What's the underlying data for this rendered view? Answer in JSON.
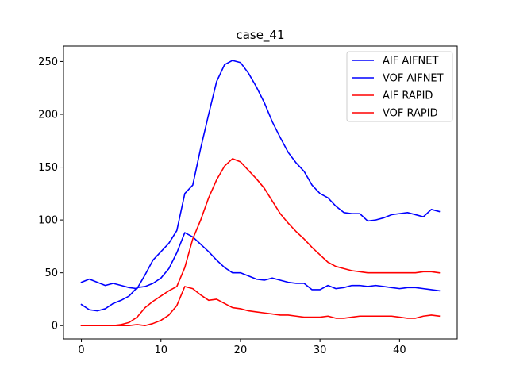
{
  "chart_data": {
    "type": "line",
    "title": "case_41",
    "xlabel": "",
    "ylabel": "",
    "xlim": [
      -2.25,
      47.25
    ],
    "ylim": [
      -12.6,
      264.6
    ],
    "xticks": [
      0,
      10,
      20,
      30,
      40
    ],
    "yticks": [
      0,
      50,
      100,
      150,
      200,
      250
    ],
    "grid": false,
    "legend_position": "top-right",
    "series": [
      {
        "name": "AIF AIFNET",
        "color": "#0000ff",
        "x": [
          0,
          1,
          2,
          3,
          4,
          5,
          6,
          7,
          8,
          9,
          10,
          11,
          12,
          13,
          14,
          15,
          16,
          17,
          18,
          19,
          20,
          21,
          22,
          23,
          24,
          25,
          26,
          27,
          28,
          29,
          30,
          31,
          32,
          33,
          34,
          35,
          36,
          37,
          38,
          39,
          40,
          41,
          42,
          43,
          44,
          45
        ],
        "y": [
          41,
          44,
          41,
          38,
          40,
          38,
          36,
          35,
          48,
          62,
          70,
          78,
          90,
          125,
          133,
          168,
          200,
          231,
          247,
          251,
          249,
          239,
          226,
          211,
          193,
          178,
          164,
          154,
          146,
          133,
          125,
          121,
          113,
          107,
          106,
          106,
          99,
          100,
          102,
          105,
          106,
          107,
          105,
          103,
          110,
          108
        ]
      },
      {
        "name": "VOF AIFNET",
        "color": "#0000ff",
        "x": [
          0,
          1,
          2,
          3,
          4,
          5,
          6,
          7,
          8,
          9,
          10,
          11,
          12,
          13,
          14,
          15,
          16,
          17,
          18,
          19,
          20,
          21,
          22,
          23,
          24,
          25,
          26,
          27,
          28,
          29,
          30,
          31,
          32,
          33,
          34,
          35,
          36,
          37,
          38,
          39,
          40,
          41,
          42,
          43,
          44,
          45
        ],
        "y": [
          20,
          15,
          14,
          16,
          21,
          24,
          28,
          36,
          37,
          40,
          45,
          54,
          69,
          88,
          84,
          77,
          70,
          62,
          55,
          50,
          50,
          47,
          44,
          43,
          45,
          43,
          41,
          40,
          40,
          34,
          34,
          38,
          35,
          36,
          38,
          38,
          37,
          38,
          37,
          36,
          35,
          36,
          36,
          35,
          34,
          33
        ]
      },
      {
        "name": "AIF RAPID",
        "color": "#ff0000",
        "x": [
          0,
          1,
          2,
          3,
          4,
          5,
          6,
          7,
          8,
          9,
          10,
          11,
          12,
          13,
          14,
          15,
          16,
          17,
          18,
          19,
          20,
          21,
          22,
          23,
          24,
          25,
          26,
          27,
          28,
          29,
          30,
          31,
          32,
          33,
          34,
          35,
          36,
          37,
          38,
          39,
          40,
          41,
          42,
          43,
          44,
          45
        ],
        "y": [
          0,
          0,
          0,
          0,
          0,
          1,
          3,
          8,
          17,
          23,
          28,
          33,
          37,
          55,
          82,
          100,
          121,
          138,
          151,
          158,
          155,
          147,
          139,
          130,
          118,
          106,
          97,
          89,
          82,
          74,
          67,
          60,
          56,
          54,
          52,
          51,
          50,
          50,
          50,
          50,
          50,
          50,
          50,
          51,
          51,
          50
        ]
      },
      {
        "name": "VOF RAPID",
        "color": "#ff0000",
        "x": [
          0,
          1,
          2,
          3,
          4,
          5,
          6,
          7,
          8,
          9,
          10,
          11,
          12,
          13,
          14,
          15,
          16,
          17,
          18,
          19,
          20,
          21,
          22,
          23,
          24,
          25,
          26,
          27,
          28,
          29,
          30,
          31,
          32,
          33,
          34,
          35,
          36,
          37,
          38,
          39,
          40,
          41,
          42,
          43,
          44,
          45
        ],
        "y": [
          0,
          0,
          0,
          0,
          0,
          0,
          0,
          1,
          0,
          2,
          5,
          10,
          19,
          37,
          35,
          29,
          24,
          25,
          21,
          17,
          16,
          14,
          13,
          12,
          11,
          10,
          10,
          9,
          8,
          8,
          8,
          9,
          7,
          7,
          8,
          9,
          9,
          9,
          9,
          9,
          8,
          7,
          7,
          9,
          10,
          9
        ]
      }
    ]
  }
}
